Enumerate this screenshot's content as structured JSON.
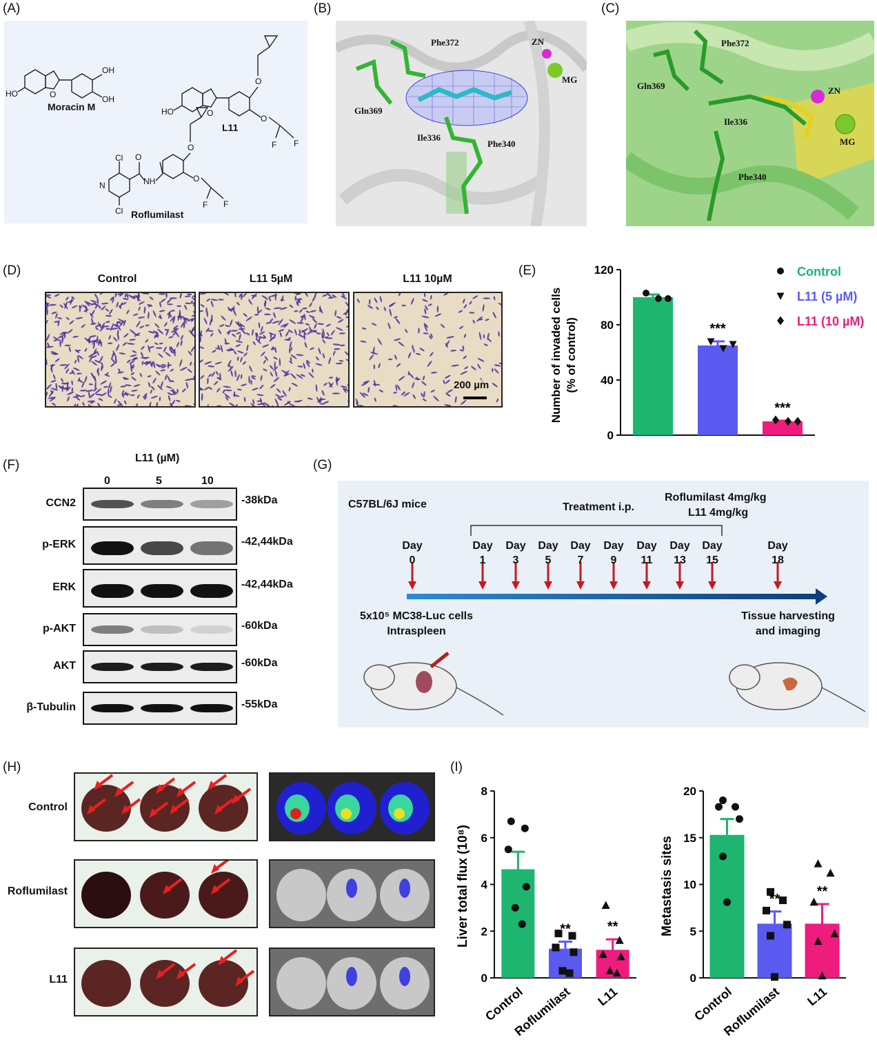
{
  "panels": {
    "A": "(A)",
    "B": "(B)",
    "C": "(C)",
    "D": "(D)",
    "E": "(E)",
    "F": "(F)",
    "G": "(G)",
    "H": "(H)",
    "I": "(I)"
  },
  "panelA": {
    "compounds": [
      "Moracin M",
      "L11",
      "Roflumilast"
    ],
    "atoms": {
      "HO": "HO",
      "OH": "OH",
      "NH": "NH",
      "Cl": "Cl",
      "F": "F",
      "N": "N",
      "O": "O"
    }
  },
  "panelB": {
    "labels": [
      "Phe372",
      "ZN",
      "MG",
      "Gln369",
      "Ile336",
      "Phe340"
    ]
  },
  "panelC": {
    "labels": [
      "Phe372",
      "Gln369",
      "ZN",
      "Ile336",
      "MG",
      "Phe340"
    ]
  },
  "panelD": {
    "titles": [
      "Control",
      "L11 5µM",
      "L11 10µM"
    ],
    "scalebar": "200 µm"
  },
  "panelF": {
    "header": "L11 (µM)",
    "doses": [
      "0",
      "5",
      "10"
    ],
    "proteins": [
      "CCN2",
      "p-ERK",
      "ERK",
      "p-AKT",
      "AKT",
      "β-Tubulin"
    ],
    "kda": [
      "-38kDa",
      "-42,44kDa",
      "-42,44kDa",
      "-60kDa",
      "-60kDa",
      "-55kDa"
    ]
  },
  "panelG": {
    "mice": "C57BL/6J mice",
    "treatment": "Treatment i.p.",
    "drug1": "Roflumilast 4mg/kg",
    "drug2": "L11 4mg/kg",
    "day_word": "Day",
    "days": [
      "0",
      "1",
      "3",
      "5",
      "7",
      "9",
      "11",
      "13",
      "15",
      "18"
    ],
    "cells_line1": "5x10⁵ MC38-Luc cells",
    "cells_line2": "Intraspleen",
    "harvest_line1": "Tissue harvesting",
    "harvest_line2": "and imaging"
  },
  "panelH": {
    "rows": [
      "Control",
      "Roflumilast",
      "L11"
    ]
  },
  "colors": {
    "control": "#1db56f",
    "l11_5": "#5a5af0",
    "l11_10": "#ee1c7c",
    "roflumilast": "#5a5af0",
    "l11": "#ee1c7c",
    "arrow": "#e8201f",
    "timeline_arrow": "#c8181e"
  },
  "chart_data": [
    {
      "type": "bar",
      "panel": "E",
      "categories": [
        "Control",
        "L11 (5 µM)",
        "L11 (10 µM)"
      ],
      "values": [
        100,
        65,
        10
      ],
      "errors": [
        2,
        3,
        0.5
      ],
      "points": [
        [
          103,
          99,
          99
        ],
        [
          68,
          63,
          66
        ],
        [
          11,
          10,
          10
        ]
      ],
      "markers": [
        "circle",
        "triangle-down",
        "diamond"
      ],
      "significance": [
        "",
        "***",
        "***"
      ],
      "ylabel": "Number of invaded cells\n(% of control)",
      "ylabel_line1": "Number of invaded cells",
      "ylabel_line2": "(% of control)",
      "yticks": [
        "0",
        "40",
        "80",
        "120"
      ],
      "ylim": [
        0,
        120
      ],
      "legend": [
        "Control",
        "L11 (5 µM)",
        "L11 (10 µM)"
      ],
      "legend_position": "top-right"
    },
    {
      "type": "bar",
      "panel": "I-left",
      "categories": [
        "Control",
        "Roflumilast",
        "L11"
      ],
      "values": [
        4.65,
        1.25,
        1.2
      ],
      "errors": [
        0.75,
        0.3,
        0.45
      ],
      "points": [
        [
          6.7,
          6.4,
          5.5,
          3.9,
          3.0,
          2.3
        ],
        [
          1.9,
          1.8,
          1.3,
          1.1,
          0.3,
          0.2
        ],
        [
          3.1,
          1.6,
          1.0,
          0.9,
          0.3,
          0.2
        ]
      ],
      "markers": [
        "circle",
        "square",
        "triangle-up"
      ],
      "significance": [
        "",
        "**",
        "**"
      ],
      "ylabel": "Liver total flux (10⁸)",
      "yticks": [
        "0",
        "2",
        "4",
        "6",
        "8"
      ],
      "ylim": [
        0,
        8
      ]
    },
    {
      "type": "bar",
      "panel": "I-right",
      "categories": [
        "Control",
        "Roflumilast",
        "L11"
      ],
      "values": [
        15.3,
        5.8,
        5.8
      ],
      "errors": [
        1.7,
        1.3,
        2.1
      ],
      "points": [
        [
          19,
          18.3,
          18.3,
          17,
          13,
          8.1
        ],
        [
          9.2,
          8.3,
          7.2,
          5.7,
          4.5,
          0.1
        ],
        [
          12.2,
          11.2,
          8.1,
          4.7,
          3.9,
          0.2
        ]
      ],
      "markers": [
        "circle",
        "square",
        "triangle-up"
      ],
      "significance": [
        "",
        "**",
        "**"
      ],
      "ylabel": "Metastasis sites",
      "yticks": [
        "0",
        "5",
        "10",
        "15",
        "20"
      ],
      "ylim": [
        0,
        20
      ]
    }
  ]
}
